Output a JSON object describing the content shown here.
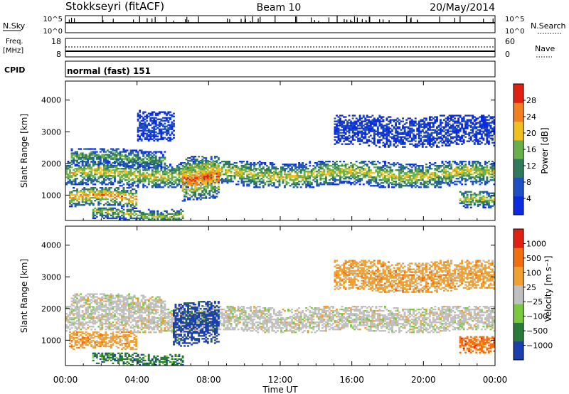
{
  "header": {
    "station": "Stokkseyri (fitACF)",
    "beam": "Beam 10",
    "date": "20/May/2014"
  },
  "strip_sky": {
    "left_label": "N.Sky",
    "right_label": "N.Search",
    "tick_top": "10^5",
    "tick_bottom": "10^0",
    "rtick_top": "10^5",
    "rtick_bottom": "10^0"
  },
  "strip_freq": {
    "label_top": "Freq.",
    "label_unit": "[MHz]",
    "tick_top": "18",
    "tick_bottom": "8",
    "rtick_top": "60",
    "rtick_bottom": "0",
    "right_label": "Nave"
  },
  "strip_cpid": {
    "label": "CPID",
    "value": "normal (fast) 151"
  },
  "chart_data": [
    {
      "type": "heatmap",
      "name": "power",
      "ylabel": "Slant Range [km]",
      "ylim": [
        200,
        4600
      ],
      "yticks": [
        "1000",
        "2000",
        "3000",
        "4000"
      ],
      "colorbar_label": "Power [dB]",
      "colorbar_ticks": [
        "28",
        "24",
        "20",
        "16",
        "12",
        "8",
        "4"
      ],
      "colors": [
        "#0a2be0",
        "#1f4fc4",
        "#2f7a5a",
        "#6ab04a",
        "#f0c020",
        "#f08020",
        "#e02010"
      ],
      "bands": [
        {
          "t_start": 0.0,
          "t_end": 24.0,
          "range_center": 1650,
          "range_width": 420,
          "level": 0.62
        },
        {
          "t_start": 0.2,
          "t_end": 4.0,
          "range_center": 900,
          "range_width": 320,
          "level": 0.78
        },
        {
          "t_start": 0.3,
          "t_end": 5.5,
          "range_center": 2150,
          "range_width": 300,
          "level": 0.45
        },
        {
          "t_start": 1.5,
          "t_end": 6.5,
          "range_center": 380,
          "range_width": 220,
          "level": 0.55
        },
        {
          "t_start": 6.5,
          "t_end": 8.5,
          "range_center": 1500,
          "range_width": 700,
          "level": 0.85
        },
        {
          "t_start": 22.0,
          "t_end": 24.0,
          "range_center": 800,
          "range_width": 300,
          "level": 0.6
        },
        {
          "t_start": 4.0,
          "t_end": 6.0,
          "range_center": 3200,
          "range_width": 500,
          "level": 0.2
        },
        {
          "t_start": 15.0,
          "t_end": 24.0,
          "range_center": 3000,
          "range_width": 500,
          "level": 0.15
        }
      ]
    },
    {
      "type": "heatmap",
      "name": "velocity",
      "ylabel": "Slant Range [km]",
      "ylim": [
        200,
        4600
      ],
      "yticks": [
        "1000",
        "2000",
        "3000",
        "4000"
      ],
      "colorbar_label": "Velocity [m s⁻¹]",
      "colorbar_ticks": [
        "1000",
        "500",
        "100",
        "25",
        "−25",
        "−100",
        "−500",
        "−1000"
      ],
      "colors": [
        "#1c3fae",
        "#2a7a3a",
        "#7ac840",
        "#c0c0c0",
        "#f0a030",
        "#f07010",
        "#e02010"
      ],
      "bands": [
        {
          "t_start": 0.0,
          "t_end": 24.0,
          "range_center": 1650,
          "range_width": 420,
          "vel_class": 3
        },
        {
          "t_start": 0.2,
          "t_end": 4.0,
          "range_center": 950,
          "range_width": 300,
          "vel_class": 4
        },
        {
          "t_start": 0.3,
          "t_end": 5.5,
          "range_center": 2150,
          "range_width": 300,
          "vel_class": 3
        },
        {
          "t_start": 1.5,
          "t_end": 6.5,
          "range_center": 380,
          "range_width": 220,
          "vel_class": 1
        },
        {
          "t_start": 6.0,
          "t_end": 8.5,
          "range_center": 1500,
          "range_width": 700,
          "vel_class": 0
        },
        {
          "t_start": 22.0,
          "t_end": 24.0,
          "range_center": 800,
          "range_width": 300,
          "vel_class": 5
        },
        {
          "t_start": 15.0,
          "t_end": 24.0,
          "range_center": 3000,
          "range_width": 500,
          "vel_class": 4
        }
      ]
    }
  ],
  "xaxis": {
    "ticks": [
      "00:00",
      "04:00",
      "08:00",
      "12:00",
      "16:00",
      "20:00",
      "00:00"
    ],
    "label": "Time UT"
  }
}
